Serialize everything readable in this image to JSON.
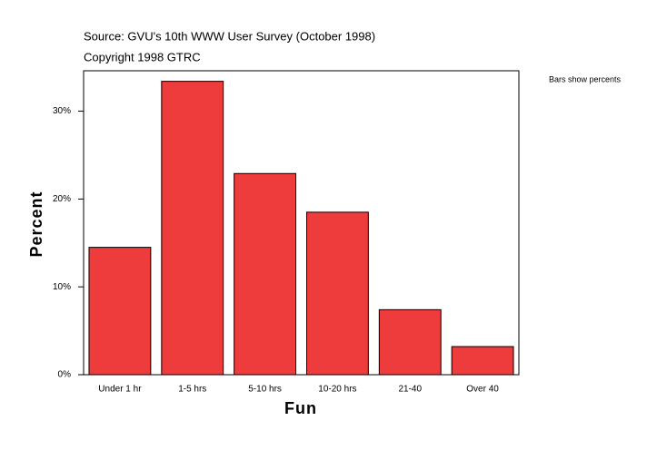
{
  "chart_data": {
    "type": "bar",
    "subtitles": [
      "Source: GVU's 10th WWW User Survey (October 1998)",
      "Copyright 1998 GTRC"
    ],
    "note": "Bars show percents",
    "x_label": "Fun",
    "y_label": "Percent",
    "categories": [
      "Under 1 hr",
      "1-5 hrs",
      "5-10 hrs",
      "10-20 hrs",
      "21-40",
      "Over 40"
    ],
    "values": [
      14.5,
      33.4,
      22.9,
      18.5,
      7.4,
      3.2
    ],
    "color": "#ee3b3b",
    "ylim": [
      0,
      34.6
    ],
    "yticks": [
      {
        "value": 0,
        "label": "0%"
      },
      {
        "value": 10,
        "label": "10%"
      },
      {
        "value": 20,
        "label": "20%"
      },
      {
        "value": 30,
        "label": "30%"
      }
    ],
    "grid": false
  }
}
